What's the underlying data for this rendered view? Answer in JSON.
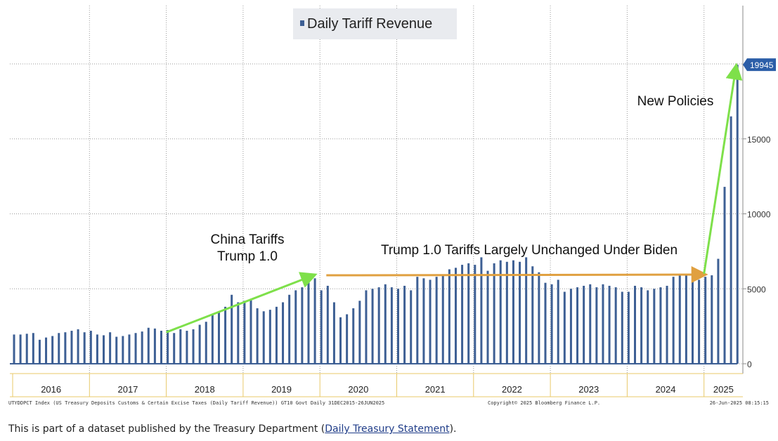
{
  "chart_data": {
    "type": "bar",
    "title": "Daily Tariff Revenue",
    "legend": "top-center",
    "grid": true,
    "ylim": [
      -300,
      20900
    ],
    "y_ticks": [
      0,
      5000,
      10000,
      15000
    ],
    "y_tick_labels": [
      "0",
      "5000",
      "10000",
      "15000"
    ],
    "last_value_label": "19945",
    "x_labels": [
      "2016",
      "2017",
      "2018",
      "2019",
      "2020",
      "2021",
      "2022",
      "2023",
      "2024",
      "2025"
    ],
    "series": [
      {
        "name": "Daily Tariff Revenue",
        "color": "#3d5f94",
        "x": [
          "2016-01",
          "2016-02",
          "2016-03",
          "2016-04",
          "2016-05",
          "2016-06",
          "2016-07",
          "2016-08",
          "2016-09",
          "2016-10",
          "2016-11",
          "2016-12",
          "2017-01",
          "2017-02",
          "2017-03",
          "2017-04",
          "2017-05",
          "2017-06",
          "2017-07",
          "2017-08",
          "2017-09",
          "2017-10",
          "2017-11",
          "2017-12",
          "2018-01",
          "2018-02",
          "2018-03",
          "2018-04",
          "2018-05",
          "2018-06",
          "2018-07",
          "2018-08",
          "2018-09",
          "2018-10",
          "2018-11",
          "2018-12",
          "2019-01",
          "2019-02",
          "2019-03",
          "2019-04",
          "2019-05",
          "2019-06",
          "2019-07",
          "2019-08",
          "2019-09",
          "2019-10",
          "2019-11",
          "2019-12",
          "2020-01",
          "2020-02",
          "2020-03",
          "2020-04",
          "2020-05",
          "2020-06",
          "2020-07",
          "2020-08",
          "2020-09",
          "2020-10",
          "2020-11",
          "2020-12",
          "2021-01",
          "2021-02",
          "2021-03",
          "2021-04",
          "2021-05",
          "2021-06",
          "2021-07",
          "2021-08",
          "2021-09",
          "2021-10",
          "2021-11",
          "2021-12",
          "2022-01",
          "2022-02",
          "2022-03",
          "2022-04",
          "2022-05",
          "2022-06",
          "2022-07",
          "2022-08",
          "2022-09",
          "2022-10",
          "2022-11",
          "2022-12",
          "2023-01",
          "2023-02",
          "2023-03",
          "2023-04",
          "2023-05",
          "2023-06",
          "2023-07",
          "2023-08",
          "2023-09",
          "2023-10",
          "2023-11",
          "2023-12",
          "2024-01",
          "2024-02",
          "2024-03",
          "2024-04",
          "2024-05",
          "2024-06",
          "2024-07",
          "2024-08",
          "2024-09",
          "2024-10",
          "2024-11",
          "2024-12",
          "2025-01",
          "2025-02",
          "2025-03",
          "2025-04",
          "2025-05",
          "2025-06"
        ],
        "values": [
          1950,
          1950,
          2000,
          2050,
          1600,
          1750,
          1850,
          2050,
          2100,
          2200,
          2300,
          2100,
          2200,
          1950,
          1900,
          2100,
          1800,
          1850,
          1950,
          2050,
          2150,
          2400,
          2350,
          2200,
          2250,
          2050,
          2300,
          2200,
          2300,
          2600,
          2800,
          3300,
          3500,
          3800,
          4600,
          4100,
          4200,
          4300,
          3700,
          3500,
          3600,
          3800,
          4100,
          4600,
          4900,
          5100,
          5500,
          5700,
          4900,
          5200,
          4100,
          3100,
          3300,
          3700,
          4200,
          4900,
          5000,
          5100,
          5300,
          5100,
          5000,
          5200,
          4900,
          5800,
          5700,
          5600,
          5800,
          5900,
          6300,
          6400,
          6600,
          6700,
          6600,
          7100,
          6200,
          6700,
          6900,
          6800,
          6900,
          6800,
          7100,
          6500,
          6100,
          5400,
          5300,
          5600,
          4800,
          5000,
          5100,
          5200,
          5300,
          5100,
          5300,
          5200,
          5100,
          4800,
          4800,
          5200,
          5100,
          4900,
          5000,
          5100,
          5200,
          5800,
          5900,
          5900,
          5800,
          5600,
          5800,
          5900,
          7000,
          11800,
          16500,
          19945
        ]
      }
    ],
    "annotations": [
      {
        "lines": [
          "China Tariffs",
          "Trump 1.0"
        ],
        "arrow_color": "#7ee04a",
        "from": [
          "2018-01",
          2100
        ],
        "to": [
          "2019-12",
          5900
        ]
      },
      {
        "lines": [
          "Trump 1.0 Tariffs Largely Unchanged Under Biden"
        ],
        "arrow_color": "#e0a040",
        "from": [
          "2020-02",
          5900
        ],
        "to": [
          "2025-01",
          5950
        ]
      },
      {
        "lines": [
          "New Policies"
        ],
        "arrow_color": "#7ee04a",
        "from": [
          "2025-01",
          6000
        ],
        "to": [
          "2025-06",
          19800
        ]
      }
    ],
    "footer_left": "UTYDDPCT Index (US Treasury Deposits Customs & Certain Excise Taxes (Daily Tariff Revenue)) GT10  Govt  Daily 31DEC2015-26JUN2025",
    "footer_center": "Copyright© 2025 Bloomberg Finance L.P.",
    "footer_right": "26-Jun-2025 08:15:15"
  },
  "source_note": {
    "prefix": "This is part of a dataset published by the Treasury Department (",
    "link_text": "Daily Treasury Statement",
    "suffix": ")."
  }
}
